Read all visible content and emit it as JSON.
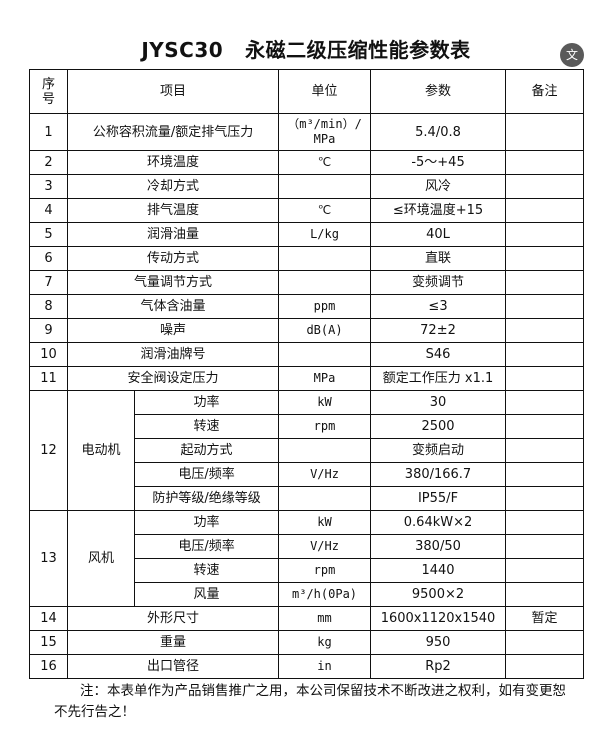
{
  "title": {
    "code": "JYSC30",
    "text": "永磁二级压缩性能参数表"
  },
  "translate_icon": "translate-icon",
  "headers": {
    "no": "序\n号",
    "item": "项目",
    "unit": "单位",
    "param": "参数",
    "note": "备注"
  },
  "rows": [
    {
      "no": "1",
      "item": "公称容积流量/额定排气压力",
      "unit": "（m³/min）/\nMPa",
      "param": "5.4/0.8",
      "note": ""
    },
    {
      "no": "2",
      "item": "环境温度",
      "unit": "℃",
      "param": "-5～+45",
      "note": ""
    },
    {
      "no": "3",
      "item": "冷却方式",
      "unit": "",
      "param": "风冷",
      "note": ""
    },
    {
      "no": "4",
      "item": "排气温度",
      "unit": "℃",
      "param": "≤环境温度+15",
      "note": ""
    },
    {
      "no": "5",
      "item": "润滑油量",
      "unit": "L/kg",
      "param": "40L",
      "note": ""
    },
    {
      "no": "6",
      "item": "传动方式",
      "unit": "",
      "param": "直联",
      "note": ""
    },
    {
      "no": "7",
      "item": "气量调节方式",
      "unit": "",
      "param": "变频调节",
      "note": ""
    },
    {
      "no": "8",
      "item": "气体含油量",
      "unit": "ppm",
      "param": "≤3",
      "note": ""
    },
    {
      "no": "9",
      "item": "噪声",
      "unit": "dB(A)",
      "param": "72±2",
      "note": ""
    },
    {
      "no": "10",
      "item": "润滑油牌号",
      "unit": "",
      "param": "S46",
      "note": ""
    },
    {
      "no": "11",
      "item": "安全阀设定压力",
      "unit": "MPa",
      "param": "额定工作压力 x1.1",
      "note": ""
    }
  ],
  "groups": [
    {
      "no": "12",
      "item": "电动机",
      "subs": [
        {
          "item": "功率",
          "unit": "kW",
          "param": "30",
          "note": ""
        },
        {
          "item": "转速",
          "unit": "rpm",
          "param": "2500",
          "note": ""
        },
        {
          "item": "起动方式",
          "unit": "",
          "param": "变频启动",
          "note": ""
        },
        {
          "item": "电压/频率",
          "unit": "V/Hz",
          "param": "380/166.7",
          "note": ""
        },
        {
          "item": "防护等级/绝缘等级",
          "unit": "",
          "param": "IP55/F",
          "note": ""
        }
      ]
    },
    {
      "no": "13",
      "item": "风机",
      "subs": [
        {
          "item": "功率",
          "unit": "kW",
          "param": "0.64kW×2",
          "note": ""
        },
        {
          "item": "电压/频率",
          "unit": "V/Hz",
          "param": "380/50",
          "note": ""
        },
        {
          "item": "转速",
          "unit": "rpm",
          "param": "1440",
          "note": ""
        },
        {
          "item": "风量",
          "unit": "m³/h(0Pa)",
          "param": "9500×2",
          "note": ""
        }
      ]
    }
  ],
  "tail_rows": [
    {
      "no": "14",
      "item": "外形尺寸",
      "unit": "mm",
      "param": "1600x1120x1540",
      "note": "暂定"
    },
    {
      "no": "15",
      "item": "重量",
      "unit": "kg",
      "param": "950",
      "note": ""
    },
    {
      "no": "16",
      "item": "出口管径",
      "unit": "in",
      "param": "Rp2",
      "note": ""
    }
  ],
  "footnote": "注：本表单作为产品销售推广之用，本公司保留技术不断改进之权利，如有变更恕不先行告之！"
}
